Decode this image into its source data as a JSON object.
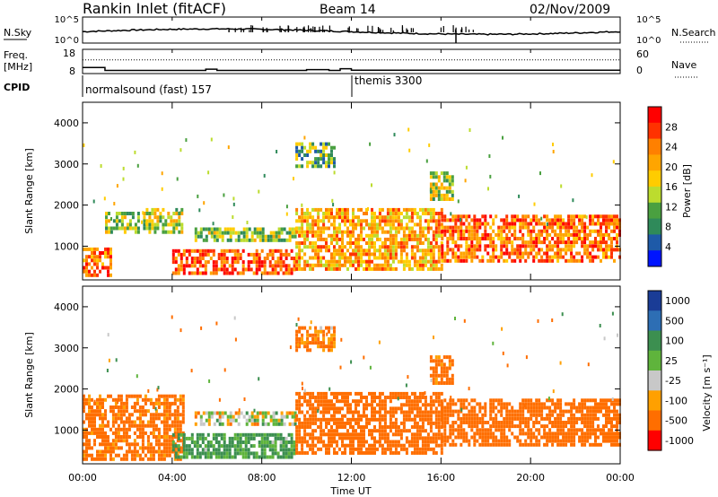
{
  "header": {
    "station": "Rankin Inlet (fitACF)",
    "beam": "Beam 14",
    "date": "02/Nov/2009"
  },
  "side_labels": {
    "nsky": "N.Sky",
    "nsearch": "N.Search",
    "freq_top": "Freq.",
    "freq_unit": "[MHz]",
    "nave": "Nave",
    "cpid": "CPID"
  },
  "chart_data": [
    {
      "type": "line",
      "name": "noise",
      "left_axis_ticks": [
        "10^5",
        "10^0"
      ],
      "right_axis_ticks": [
        "10^5",
        "10^0"
      ],
      "series": [
        {
          "label": "N.Sky",
          "style": "solid"
        },
        {
          "label": "N.Search",
          "style": "dotted"
        }
      ]
    },
    {
      "type": "line",
      "name": "frequency-nave",
      "left_axis_ticks": [
        "18",
        "8"
      ],
      "right_axis_ticks": [
        "60",
        "0"
      ],
      "x_hours": [
        0,
        1,
        5.5,
        6,
        8.5,
        9.5,
        10,
        11,
        11.5,
        12,
        24
      ],
      "freq_mhz": [
        10.5,
        9.3,
        9.8,
        9.3,
        9.3,
        9.3,
        9.6,
        9.3,
        10.0,
        9.4,
        9.4
      ],
      "nave": [
        34,
        34,
        34,
        34,
        34,
        34,
        34,
        34,
        34,
        34,
        34
      ]
    },
    {
      "type": "table",
      "name": "cpid",
      "entries": [
        {
          "start_hour": 0,
          "label": "normalsound (fast) 157"
        },
        {
          "start_hour": 12,
          "label": "themis 3300"
        }
      ]
    },
    {
      "type": "heatmap",
      "name": "power",
      "quantity": "Power",
      "unit": "[dB]",
      "ylabel": "Slant Range [km]",
      "ylim": [
        180,
        4500
      ],
      "yticks": [
        1000,
        2000,
        3000,
        4000
      ],
      "colorbar_ticks": [
        "28",
        "24",
        "20",
        "16",
        "12",
        "8",
        "4"
      ],
      "colorscale": [
        "#ff0000",
        "#ff3200",
        "#ff8000",
        "#ffa500",
        "#ffcc00",
        "#bcdc2e",
        "#4aa040",
        "#2f8a5a",
        "#1e5aa8",
        "#0014ff"
      ],
      "echo_regions": [
        {
          "x0": 0.0,
          "x1": 1.3,
          "y0": 250,
          "y1": 900,
          "value": 24
        },
        {
          "x0": 1.0,
          "x1": 2.5,
          "y0": 1300,
          "y1": 1800,
          "value": 12
        },
        {
          "x0": 2.7,
          "x1": 4.5,
          "y0": 1300,
          "y1": 1900,
          "value": 14
        },
        {
          "x0": 4.0,
          "x1": 9.5,
          "y0": 300,
          "y1": 900,
          "value": 26
        },
        {
          "x0": 5.0,
          "x1": 9.5,
          "y0": 1100,
          "y1": 1400,
          "value": 12
        },
        {
          "x0": 9.5,
          "x1": 16.0,
          "y0": 400,
          "y1": 1900,
          "value": 20
        },
        {
          "x0": 16.0,
          "x1": 24.0,
          "y0": 600,
          "y1": 1700,
          "value": 24
        },
        {
          "x0": 9.5,
          "x1": 11.2,
          "y0": 2900,
          "y1": 3500,
          "value": 10
        },
        {
          "x0": 15.5,
          "x1": 16.5,
          "y0": 2100,
          "y1": 2800,
          "value": 14
        }
      ]
    },
    {
      "type": "heatmap",
      "name": "velocity",
      "quantity": "Velocity",
      "unit": "[m s⁻¹]",
      "ylabel": "Slant Range [km]",
      "ylim": [
        180,
        4500
      ],
      "yticks": [
        1000,
        2000,
        3000,
        4000
      ],
      "colorbar_ticks": [
        "1000",
        "500",
        "100",
        "25",
        "-25",
        "-100",
        "-500",
        "-1000"
      ],
      "colorscale": [
        "#1a3c96",
        "#2d6eb4",
        "#3c8f50",
        "#5fb43c",
        "#c8c8c8",
        "#ffa000",
        "#ff6e00",
        "#ff0000"
      ],
      "echo_regions": [
        {
          "x0": 0.0,
          "x1": 4.5,
          "y0": 250,
          "y1": 1800,
          "value": -200
        },
        {
          "x0": 4.0,
          "x1": 9.5,
          "y0": 300,
          "y1": 900,
          "value": 150
        },
        {
          "x0": 5.0,
          "x1": 9.5,
          "y0": 1100,
          "y1": 1400,
          "value": 0
        },
        {
          "x0": 9.5,
          "x1": 16.0,
          "y0": 400,
          "y1": 1900,
          "value": -300
        },
        {
          "x0": 16.0,
          "x1": 24.0,
          "y0": 600,
          "y1": 1700,
          "value": -250
        },
        {
          "x0": 9.5,
          "x1": 11.2,
          "y0": 2900,
          "y1": 3500,
          "value": -150
        },
        {
          "x0": 15.5,
          "x1": 16.5,
          "y0": 2100,
          "y1": 2800,
          "value": -200
        }
      ]
    }
  ],
  "x_axis": {
    "label": "Time UT",
    "ticks": [
      "00:00",
      "04:00",
      "08:00",
      "12:00",
      "16:00",
      "20:00",
      "00:00"
    ],
    "tick_hours": [
      0,
      4,
      8,
      12,
      16,
      20,
      24
    ],
    "range_hours": [
      0,
      24
    ]
  }
}
